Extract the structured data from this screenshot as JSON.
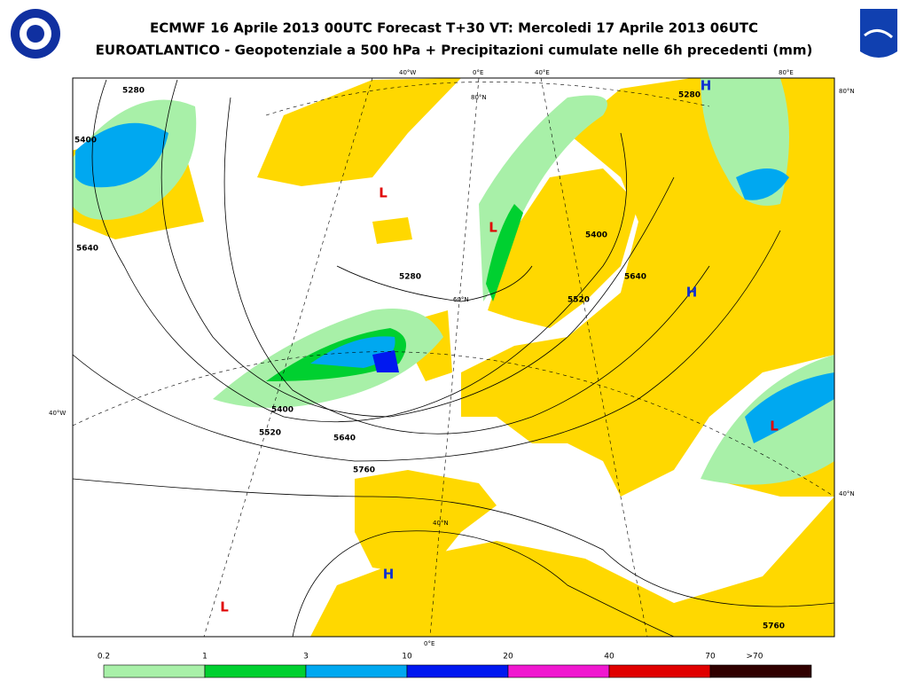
{
  "header": {
    "title": "ECMWF 16 Aprile 2013 00UTC Forecast T+30 VT: Mercoledi 17 Aprile 2013 06UTC",
    "subtitle": "EUROATLANTICO - Geopotenziale a 500 hPa + Precipitazioni cumulate nelle 6h precedenti (mm)"
  },
  "map": {
    "graticule_labels": [
      "40°W",
      "0°E",
      "40°E",
      "80°E",
      "80°N",
      "40°W",
      "40°N",
      "80°N",
      "60°N",
      "40°N",
      "0°E"
    ],
    "contour_labels": [
      "5280",
      "5400",
      "5640",
      "5280",
      "5400",
      "5520",
      "5640",
      "5760",
      "5400",
      "5520",
      "5640",
      "5280",
      "5760"
    ],
    "pressure_centers": [
      {
        "label": "L",
        "color": "#e00000"
      },
      {
        "label": "L",
        "color": "#e00000"
      },
      {
        "label": "H",
        "color": "#1030d0"
      },
      {
        "label": "H",
        "color": "#1030d0"
      },
      {
        "label": "L",
        "color": "#e00000"
      },
      {
        "label": "H",
        "color": "#1030d0"
      },
      {
        "label": "L",
        "color": "#e00000"
      }
    ]
  },
  "legend": {
    "ticks": [
      "0.2",
      "1",
      "3",
      "10",
      "20",
      "40",
      "70",
      ">70"
    ],
    "colors": [
      "#a8f0a8",
      "#00d030",
      "#00a8f0",
      "#0018f0",
      "#f018d0",
      "#e00000",
      "#300000"
    ]
  }
}
